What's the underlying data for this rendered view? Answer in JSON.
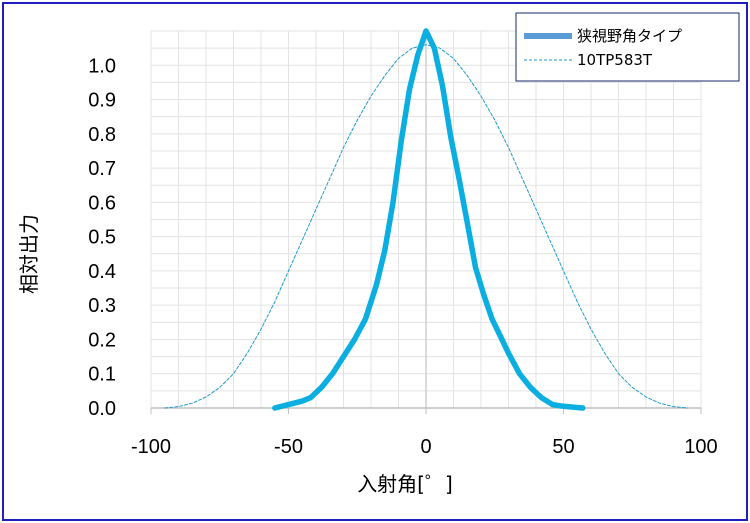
{
  "chart_data": {
    "type": "line",
    "xlabel": "入射角[゜]",
    "ylabel": "相対出力",
    "xlim": [
      -100,
      100
    ],
    "ylim": [
      0,
      1.1
    ],
    "xticks": [
      -100,
      -50,
      0,
      50,
      100
    ],
    "yticks": [
      "0.0",
      "0.1",
      "0.2",
      "0.3",
      "0.4",
      "0.5",
      "0.6",
      "0.7",
      "0.8",
      "0.9",
      "1.0"
    ],
    "grid": true,
    "legend_position": "top-right",
    "series": [
      {
        "name": "狭視野角タイプ",
        "color": "#0aaee0",
        "style": "solid-thick",
        "x": [
          -55,
          -50,
          -45,
          -42,
          -38,
          -34,
          -30,
          -26,
          -22,
          -18,
          -15,
          -12,
          -9,
          -6,
          -3,
          0,
          3,
          6,
          9,
          12,
          15,
          18,
          21,
          24,
          27,
          30,
          34,
          38,
          42,
          46,
          50,
          57
        ],
        "y": [
          0.0,
          0.01,
          0.02,
          0.03,
          0.06,
          0.1,
          0.15,
          0.2,
          0.26,
          0.36,
          0.46,
          0.6,
          0.78,
          0.93,
          1.03,
          1.1,
          1.05,
          0.94,
          0.79,
          0.67,
          0.54,
          0.41,
          0.33,
          0.26,
          0.21,
          0.16,
          0.1,
          0.06,
          0.03,
          0.01,
          0.005,
          0.0
        ]
      },
      {
        "name": "10TP583T",
        "color": "#1f9bc8",
        "style": "dashed-thin",
        "x": [
          -95,
          -90,
          -85,
          -80,
          -75,
          -70,
          -65,
          -60,
          -55,
          -50,
          -45,
          -40,
          -35,
          -30,
          -25,
          -20,
          -15,
          -10,
          -5,
          0,
          5,
          10,
          15,
          20,
          25,
          30,
          35,
          40,
          45,
          50,
          55,
          60,
          65,
          70,
          75,
          80,
          85,
          90,
          95
        ],
        "y": [
          0.0,
          0.004,
          0.014,
          0.032,
          0.06,
          0.1,
          0.16,
          0.23,
          0.31,
          0.4,
          0.49,
          0.58,
          0.67,
          0.76,
          0.84,
          0.91,
          0.97,
          1.02,
          1.05,
          1.06,
          1.05,
          1.02,
          0.97,
          0.91,
          0.84,
          0.76,
          0.67,
          0.58,
          0.49,
          0.4,
          0.31,
          0.23,
          0.16,
          0.1,
          0.06,
          0.032,
          0.014,
          0.004,
          0.0
        ]
      }
    ]
  }
}
